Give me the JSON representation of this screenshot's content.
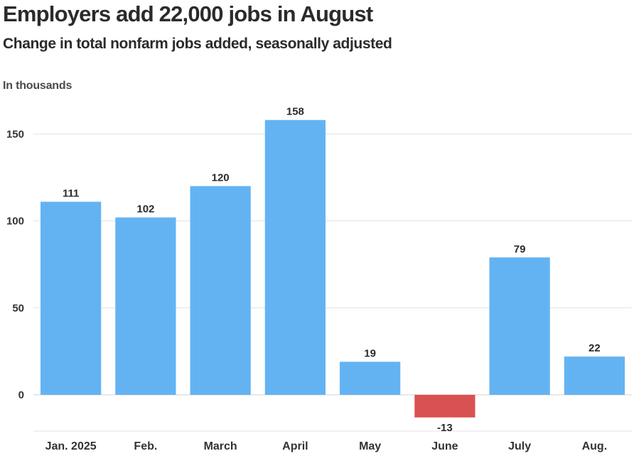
{
  "chart_data": {
    "type": "bar",
    "title": "Employers add 22,000 jobs in August",
    "subtitle": "Change in total nonfarm jobs added, seasonally adjusted",
    "units_label": "In thousands",
    "categories": [
      "Jan. 2025",
      "Feb.",
      "March",
      "April",
      "May",
      "June",
      "July",
      "Aug."
    ],
    "values": [
      111,
      102,
      120,
      158,
      19,
      -13,
      79,
      22
    ],
    "value_labels": [
      "111",
      "102",
      "120",
      "158",
      "19",
      "-13",
      "79",
      "22"
    ],
    "yticks": [
      0,
      50,
      100,
      150
    ],
    "ylim": [
      -20,
      170
    ],
    "grid": true,
    "xlabel": "",
    "ylabel": "",
    "colors": {
      "positive": "#63b3f3",
      "negative": "#d95252",
      "grid": "#e3e3e3",
      "zero_line": "#d0d0d0",
      "text": "#2b2b2b"
    }
  }
}
